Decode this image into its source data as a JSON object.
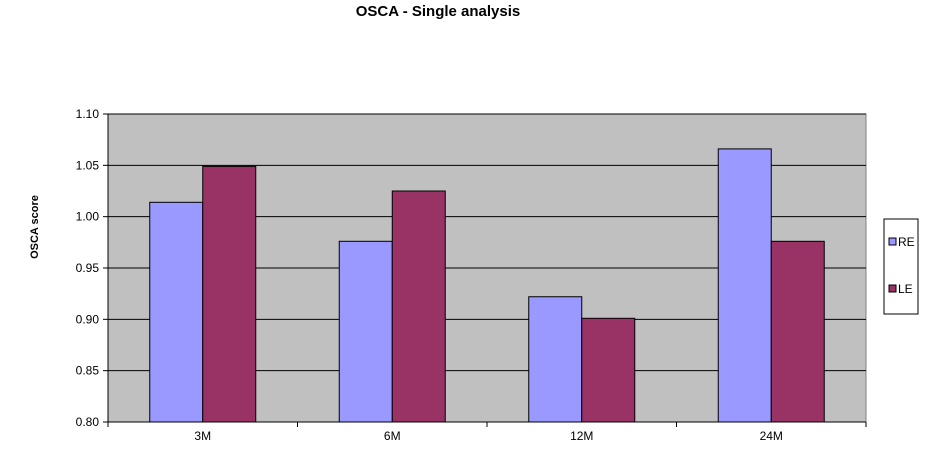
{
  "chart_data": {
    "type": "bar",
    "title": "OSCA - Single analysis",
    "xlabel": "",
    "ylabel": "OSCA score",
    "categories": [
      "3M",
      "6M",
      "12M",
      "24M"
    ],
    "series": [
      {
        "name": "RE",
        "color": "#9999ff",
        "values": [
          1.014,
          0.976,
          0.922,
          1.066
        ]
      },
      {
        "name": "LE",
        "color": "#993366",
        "values": [
          1.049,
          1.025,
          0.901,
          0.976
        ]
      }
    ],
    "ylim": [
      0.8,
      1.1
    ],
    "yticks": [
      "0.80",
      "0.85",
      "0.90",
      "0.95",
      "1.00",
      "1.05",
      "1.10"
    ],
    "grid": true,
    "plot_background": "#c0c0c0",
    "legend_position": "right"
  }
}
